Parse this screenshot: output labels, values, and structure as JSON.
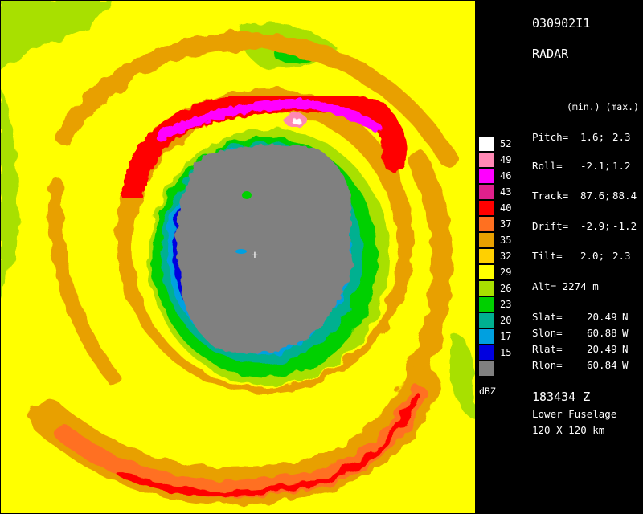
{
  "header": {
    "id": "030902I1",
    "product": "RADAR"
  },
  "params": {
    "minmax_header": "(min.) (max.)",
    "rows": [
      {
        "label": "Pitch=",
        "min": "1.6;",
        "max": "2.3"
      },
      {
        "label": "Roll=",
        "min": "-2.1;",
        "max": "1.2"
      },
      {
        "label": "Track=",
        "min": "87.6;",
        "max": "88.4"
      },
      {
        "label": "Drift=",
        "min": "-2.9;",
        "max": "-1.2"
      },
      {
        "label": "Tilt=",
        "min": "2.0;",
        "max": "2.3"
      }
    ],
    "alt": "Alt= 2274 m"
  },
  "position": [
    {
      "label": "Slat=",
      "value": "20.49",
      "hem": "N"
    },
    {
      "label": "Slon=",
      "value": "60.88",
      "hem": "W"
    },
    {
      "label": "Rlat=",
      "value": "20.49",
      "hem": "N"
    },
    {
      "label": "Rlon=",
      "value": "60.84",
      "hem": "W"
    }
  ],
  "footer": {
    "time": "183434 Z",
    "antenna": "Lower Fuselage",
    "domain": "120 X 120 km"
  },
  "legend": {
    "unit": "dBZ",
    "levels": [
      {
        "value": "52",
        "color": "#ffffff"
      },
      {
        "value": "49",
        "color": "#ff88b4"
      },
      {
        "value": "46",
        "color": "#ff00ff"
      },
      {
        "value": "43",
        "color": "#e0208c"
      },
      {
        "value": "40",
        "color": "#ff0000"
      },
      {
        "value": "37",
        "color": "#ff7020"
      },
      {
        "value": "35",
        "color": "#e8a000"
      },
      {
        "value": "32",
        "color": "#ffd000"
      },
      {
        "value": "29",
        "color": "#ffff00"
      },
      {
        "value": "26",
        "color": "#a8e000"
      },
      {
        "value": "23",
        "color": "#00d000"
      },
      {
        "value": "20",
        "color": "#00b090"
      },
      {
        "value": "17",
        "color": "#00a0e0"
      },
      {
        "value": "15",
        "color": "#0000e0"
      },
      {
        "value": "",
        "color": "#808080"
      }
    ]
  },
  "plot": {
    "center_mark": "+"
  }
}
